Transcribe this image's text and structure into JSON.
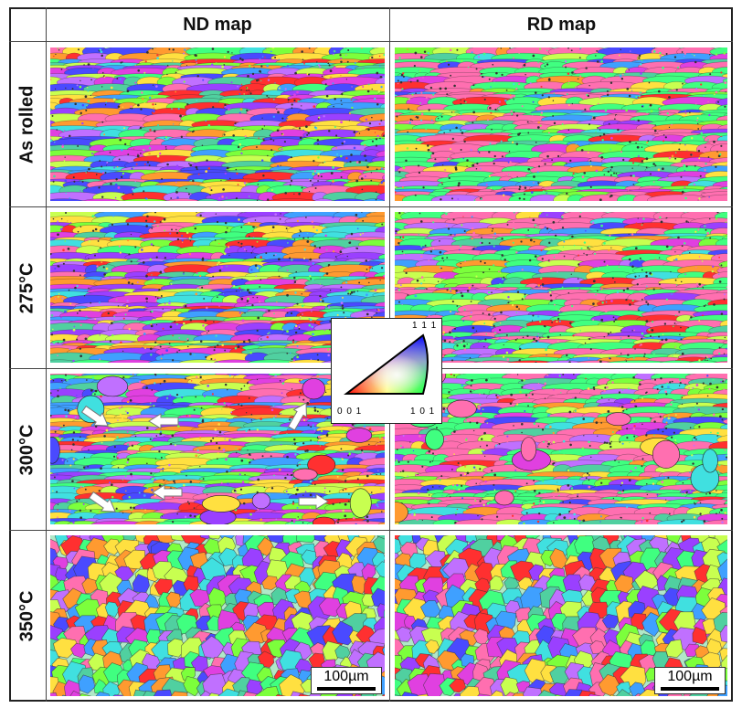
{
  "figure": {
    "column_headers": [
      "ND map",
      "RD map"
    ],
    "row_labels": [
      "As rolled",
      "275°C",
      "300°C",
      "350°C"
    ],
    "scale_bar_label": "100µm",
    "legend": {
      "vertex_labels": {
        "top_right": "1 1 1",
        "bottom_left": "0 0 1",
        "bottom_right": "1 0 1"
      },
      "colors": {
        "001": "#ff0000",
        "101": "#00ff00",
        "111": "#0000ff"
      }
    },
    "ebsd_palette": [
      "#ff3030",
      "#ff6fb0",
      "#e040e0",
      "#9a40ff",
      "#4a4aff",
      "#3fa0ff",
      "#40e0e0",
      "#40ff80",
      "#7cff3c",
      "#c8ff50",
      "#ffe040",
      "#ff9a30",
      "#c070ff",
      "#50d0a0"
    ],
    "arrow_icon": "white-arrow-icon"
  }
}
